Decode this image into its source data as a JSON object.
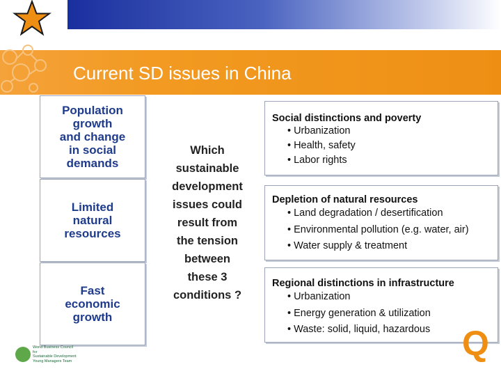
{
  "colors": {
    "header_blue": "#1a2f9e",
    "accent_orange": "#ee8f14",
    "box_text_blue": "#1f3b8c"
  },
  "icons": [
    "star-icon",
    "circles-decoration",
    "organization-logo",
    "q-icon"
  ],
  "title": "Current SD issues in China",
  "left_boxes": [
    {
      "label": "Population\ngrowth\nand change\nin social\ndemands"
    },
    {
      "label": "Limited\nnatural\nresources"
    },
    {
      "label": "Fast\neconomic\ngrowth"
    }
  ],
  "center_question": "Which\nsustainable\ndevelopment\nissues could\nresult from\nthe tension\nbetween\nthese 3\nconditions ?",
  "right_boxes": [
    {
      "heading": "Social distinctions and poverty",
      "items": [
        "Urbanization",
        "Health, safety",
        "Labor rights"
      ]
    },
    {
      "heading": "Depletion of natural resources",
      "items": [
        "Land degradation / desertification",
        "Environmental pollution (e.g. water, air)",
        "Water supply & treatment"
      ]
    },
    {
      "heading": "Regional distinctions in infrastructure",
      "items": [
        "Urbanization",
        "Energy generation & utilization",
        "Waste: solid, liquid, hazardous"
      ]
    }
  ],
  "q_badge": "Q",
  "logo_text": "World Business Council for\nSustainable Development\nYoung Managers Team"
}
